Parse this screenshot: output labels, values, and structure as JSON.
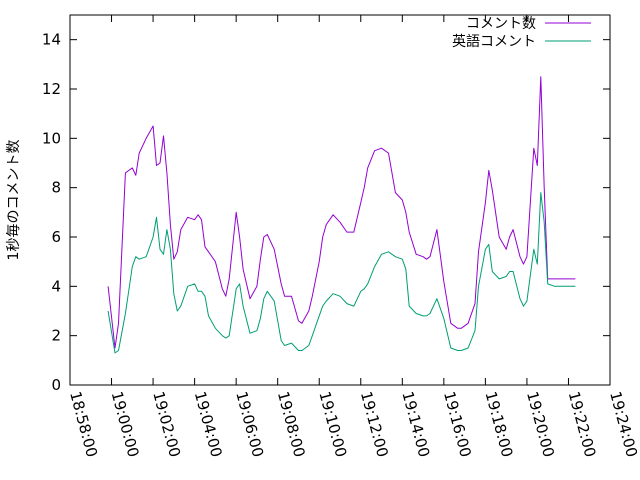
{
  "chart_data": {
    "type": "line",
    "title": "",
    "xlabel": "",
    "ylabel": "1秒毎のコメント数",
    "xlim": [
      "18:58:00",
      "19:24:00"
    ],
    "ylim": [
      0,
      15
    ],
    "x_ticks": [
      "18:58:00",
      "19:00:00",
      "19:02:00",
      "19:04:00",
      "19:06:00",
      "19:08:00",
      "19:10:00",
      "19:12:00",
      "19:14:00",
      "19:16:00",
      "19:18:00",
      "19:20:00",
      "19:22:00",
      "19:24:00"
    ],
    "y_ticks": [
      "0",
      "2",
      "4",
      "6",
      "8",
      "10",
      "12",
      "14"
    ],
    "grid": false,
    "legend": "top-right",
    "x": [
      "18:59:50",
      "19:00:10",
      "19:00:20",
      "19:00:40",
      "19:01:00",
      "19:01:10",
      "19:01:20",
      "19:01:40",
      "19:02:00",
      "19:02:10",
      "19:02:20",
      "19:02:30",
      "19:02:40",
      "19:02:50",
      "19:03:00",
      "19:03:10",
      "19:03:20",
      "19:03:40",
      "19:04:00",
      "19:04:10",
      "19:04:20",
      "19:04:30",
      "19:04:40",
      "19:05:00",
      "19:05:20",
      "19:05:30",
      "19:05:40",
      "19:06:00",
      "19:06:10",
      "19:06:20",
      "19:06:40",
      "19:07:00",
      "19:07:10",
      "19:07:20",
      "19:07:30",
      "19:07:50",
      "19:08:10",
      "19:08:20",
      "19:08:40",
      "19:09:00",
      "19:09:10",
      "19:09:30",
      "19:09:40",
      "19:10:00",
      "19:10:10",
      "19:10:20",
      "19:10:40",
      "19:11:00",
      "19:11:20",
      "19:11:40",
      "19:12:00",
      "19:12:10",
      "19:12:20",
      "19:12:40",
      "19:13:00",
      "19:13:20",
      "19:13:40",
      "19:14:00",
      "19:14:10",
      "19:14:20",
      "19:14:40",
      "19:15:00",
      "19:15:10",
      "19:15:20",
      "19:15:40",
      "19:16:00",
      "19:16:20",
      "19:16:40",
      "19:16:50",
      "19:17:10",
      "19:17:30",
      "19:17:40",
      "19:18:00",
      "19:18:10",
      "19:18:20",
      "19:18:40",
      "19:19:00",
      "19:19:10",
      "19:19:20",
      "19:19:40",
      "19:19:50",
      "19:20:00",
      "19:20:20",
      "19:20:30",
      "19:20:40",
      "19:20:50",
      "19:21:00",
      "19:21:20",
      "19:21:30",
      "19:21:40",
      "19:21:50",
      "19:22:00",
      "19:22:10",
      "19:22:20"
    ],
    "series": [
      {
        "name": "コメント数",
        "color": "#9400d3",
        "values": [
          4.0,
          1.5,
          2.5,
          8.6,
          8.8,
          8.5,
          9.4,
          10.0,
          10.5,
          8.9,
          9.0,
          10.1,
          8.6,
          6.5,
          5.1,
          5.4,
          6.3,
          6.8,
          6.7,
          6.9,
          6.7,
          5.6,
          5.4,
          5.0,
          3.9,
          3.6,
          4.3,
          7.0,
          6.0,
          4.7,
          3.5,
          4.0,
          5.1,
          6.0,
          6.1,
          5.5,
          4.1,
          3.6,
          3.6,
          2.6,
          2.5,
          3.0,
          3.6,
          5.0,
          6.0,
          6.5,
          6.9,
          6.6,
          6.2,
          6.2,
          7.4,
          8.0,
          8.8,
          9.5,
          9.6,
          9.4,
          7.8,
          7.5,
          7.0,
          6.2,
          5.3,
          5.2,
          5.1,
          5.2,
          6.3,
          4.2,
          2.5,
          2.3,
          2.3,
          2.5,
          3.3,
          5.4,
          7.4,
          8.7,
          7.9,
          6.0,
          5.5,
          6.0,
          6.3,
          5.2,
          4.9,
          5.2,
          9.6,
          8.9,
          12.5,
          8.0,
          4.3,
          4.3,
          4.3,
          4.3,
          4.3,
          4.3,
          4.3,
          4.3
        ]
      },
      {
        "name": "英語コメント",
        "color": "#009e73",
        "values": [
          3.0,
          1.3,
          1.4,
          2.9,
          4.8,
          5.2,
          5.1,
          5.2,
          6.0,
          6.8,
          5.5,
          5.3,
          6.3,
          5.5,
          3.7,
          3.0,
          3.2,
          4.0,
          4.1,
          3.8,
          3.8,
          3.6,
          2.8,
          2.3,
          2.0,
          1.9,
          2.0,
          3.9,
          4.1,
          3.2,
          2.1,
          2.2,
          2.7,
          3.5,
          3.8,
          3.4,
          1.8,
          1.6,
          1.7,
          1.4,
          1.4,
          1.6,
          2.0,
          2.8,
          3.2,
          3.4,
          3.7,
          3.6,
          3.3,
          3.2,
          3.8,
          3.9,
          4.1,
          4.8,
          5.3,
          5.4,
          5.2,
          5.1,
          4.7,
          3.2,
          2.9,
          2.8,
          2.8,
          2.9,
          3.5,
          2.7,
          1.5,
          1.4,
          1.4,
          1.5,
          2.2,
          4.0,
          5.5,
          5.7,
          4.6,
          4.3,
          4.4,
          4.6,
          4.6,
          3.5,
          3.2,
          3.4,
          5.5,
          4.9,
          7.8,
          6.6,
          4.1,
          4.0,
          4.0,
          4.0,
          4.0,
          4.0,
          4.0,
          4.0
        ]
      }
    ]
  }
}
